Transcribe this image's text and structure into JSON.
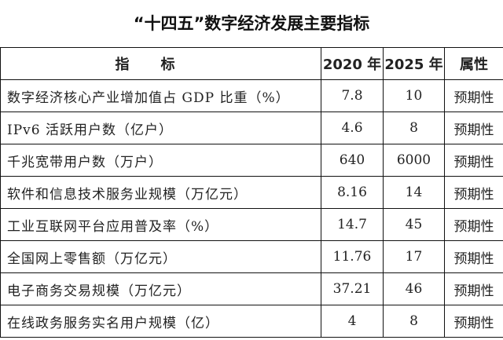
{
  "title": "“十四五”数字经济发展主要指标",
  "headers": [
    "指标",
    "2020 年",
    "2025 年",
    "属性"
  ],
  "rows": [
    {
      "name": "数字经济核心产业增加值占 GDP 比重（%）",
      "v2020": "7.8",
      "v2025": "10",
      "attr": "预期性"
    },
    {
      "name": "IPv6 活跃用户数（亿户）",
      "v2020": "4.6",
      "v2025": "8",
      "attr": "预期性"
    },
    {
      "name": "千兆宽带用户数（万户）",
      "v2020": "640",
      "v2025": "6000",
      "attr": "预期性"
    },
    {
      "name": "软件和信息技术服务业规模（万亿元）",
      "v2020": "8.16",
      "v2025": "14",
      "attr": "预期性"
    },
    {
      "name": "工业互联网平台应用普及率（%）",
      "v2020": "14.7",
      "v2025": "45",
      "attr": "预期性"
    },
    {
      "name": "全国网上零售额（万亿元）",
      "v2020": "11.76",
      "v2025": "17",
      "attr": "预期性"
    },
    {
      "name": "电子商务交易规模（万亿元）",
      "v2020": "37.21",
      "v2025": "46",
      "attr": "预期性"
    },
    {
      "name": "在线政务服务实名用户规模（亿）",
      "v2020": "4",
      "v2025": "8",
      "attr": "预期性"
    }
  ]
}
